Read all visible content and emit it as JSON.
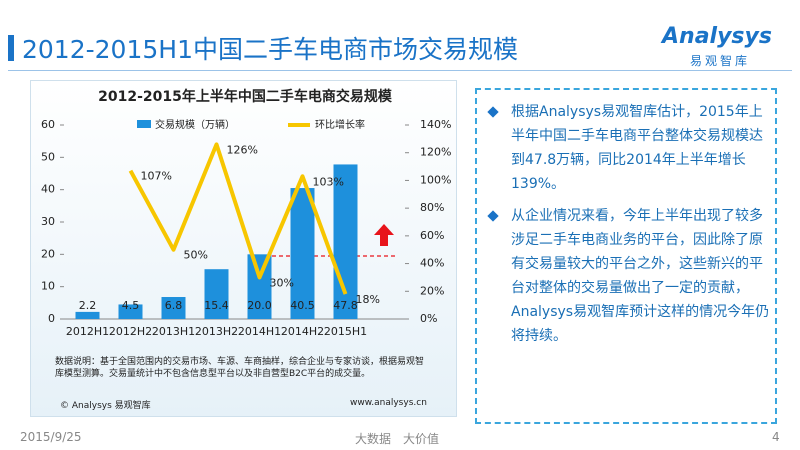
{
  "header": {
    "title": "2012-2015H1中国二手车电商市场交易规模",
    "logo": "Analysys",
    "logo_sub": "易观智库"
  },
  "chart_data": {
    "type": "bar",
    "title": "2012-2015年上半年中国二手车电商交易规模",
    "categories": [
      "2012H1",
      "2012H2",
      "2013H1",
      "2013H2",
      "2014H1",
      "2014H2",
      "2015H1"
    ],
    "series": [
      {
        "name": "交易规模（万辆）",
        "color": "#1e90dc",
        "values": [
          2.2,
          4.5,
          6.8,
          15.4,
          20.0,
          40.5,
          47.8
        ],
        "value_labels": [
          "2.2",
          "4.5",
          "6.8",
          "15.4",
          "20.0",
          "40.5",
          "47.8"
        ]
      },
      {
        "name": "环比增长率",
        "type": "line",
        "axis": "y2",
        "color": "#f7c600",
        "values": [
          null,
          107,
          50,
          126,
          30,
          103,
          18
        ],
        "value_labels": [
          null,
          "107%",
          "50%",
          "126%",
          "30%",
          "103%",
          "18%"
        ]
      }
    ],
    "ylim": [
      0,
      60
    ],
    "yticks": [
      0,
      10,
      20,
      30,
      40,
      50,
      60
    ],
    "y2lim": [
      0,
      140
    ],
    "y2ticks": [
      {
        "value": 0,
        "label": "0%"
      },
      {
        "value": 20,
        "label": "20%"
      },
      {
        "value": 40,
        "label": "40%"
      },
      {
        "value": 60,
        "label": "60%"
      },
      {
        "value": 80,
        "label": "80%"
      },
      {
        "value": 100,
        "label": "100%"
      },
      {
        "value": 120,
        "label": "120%"
      },
      {
        "value": 140,
        "label": "140%"
      }
    ],
    "legend": "top",
    "note": "数据说明：基于全国范围内的交易市场、车源、车商抽样，综合企业与专家访谈，根据易观智库模型测算。交易量统计中不包含信息型平台以及非自营型B2C平台的成交量。",
    "source_left": "© Analysys 易观智库",
    "source_right": "www.analysys.cn"
  },
  "bullets": [
    "根据Analysys易观智库估计，2015年上半年中国二手车电商平台整体交易规模达到47.8万辆，同比2014年上半年增长139%。",
    "从企业情况来看，今年上半年出现了较多涉足二手车电商业务的平台，因此除了原有交易量较大的平台之外，这些新兴的平台对整体的交易量做出了一定的贡献，Analysys易观智库预计这样的情况今年仍将持续。"
  ],
  "footer": {
    "date": "2015/9/25",
    "slogan": "大数据　大价值",
    "page": "4"
  }
}
